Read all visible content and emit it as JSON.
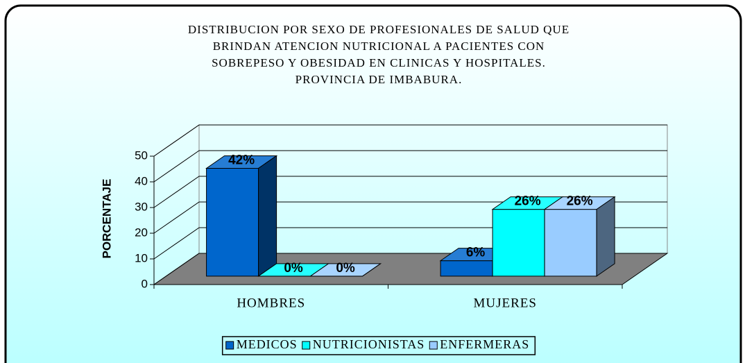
{
  "chart_data": {
    "type": "bar3d",
    "title": [
      "DISTRIBUCION POR SEXO DE PROFESIONALES DE SALUD QUE",
      "BRINDAN ATENCION NUTRICIONAL A PACIENTES CON",
      "SOBREPESO Y OBESIDAD EN CLINICAS Y HOSPITALES.",
      "PROVINCIA DE IMBABURA."
    ],
    "ylabel": "PORCENTAJE",
    "categories": [
      "HOMBRES",
      "MUJERES"
    ],
    "series": [
      {
        "name": "MEDICOS",
        "color": "#0066cc",
        "values": [
          42,
          6
        ],
        "value_labels": [
          "42%",
          "6%"
        ]
      },
      {
        "name": "NUTRICIONISTAS",
        "color": "#00ffff",
        "values": [
          0,
          26
        ],
        "value_labels": [
          "0%",
          "26%"
        ]
      },
      {
        "name": "ENFERMERAS",
        "color": "#99ccff",
        "values": [
          0,
          26
        ],
        "value_labels": [
          "0%",
          "26%"
        ]
      }
    ],
    "ylim": [
      0,
      50
    ],
    "yticks": [
      0,
      10,
      20,
      30,
      40,
      50
    ],
    "grid": true,
    "legend": "bottom"
  }
}
